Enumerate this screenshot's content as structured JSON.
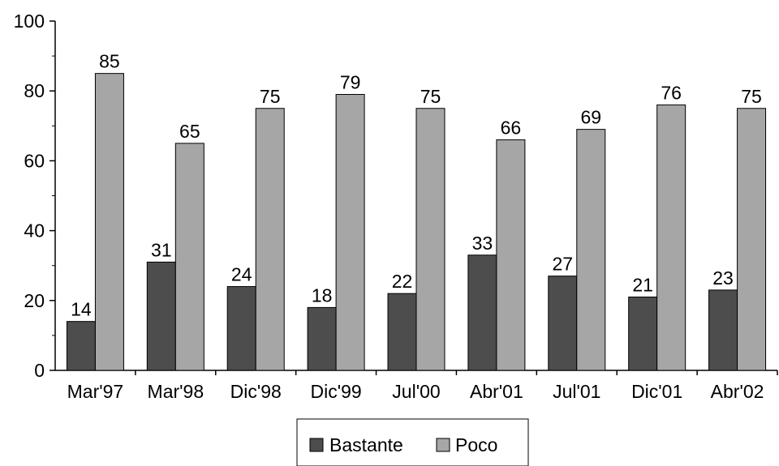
{
  "chart_data": {
    "type": "bar",
    "categories": [
      "Mar'97",
      "Mar'98",
      "Dic'98",
      "Dic'99",
      "Jul'00",
      "Abr'01",
      "Jul'01",
      "Dic'01",
      "Abr'02"
    ],
    "series": [
      {
        "name": "Bastante",
        "values": [
          14,
          31,
          24,
          18,
          22,
          33,
          27,
          21,
          23
        ],
        "color": "#4d4d4d"
      },
      {
        "name": "Poco",
        "values": [
          85,
          65,
          75,
          79,
          75,
          66,
          69,
          76,
          75
        ],
        "color": "#a6a6a6"
      }
    ],
    "title": "",
    "xlabel": "",
    "ylabel": "",
    "ylim": [
      0,
      100
    ],
    "yticks": [
      0,
      20,
      40,
      60,
      80,
      100
    ],
    "grid": false,
    "legend_position": "bottom-center",
    "data_labels": true
  }
}
